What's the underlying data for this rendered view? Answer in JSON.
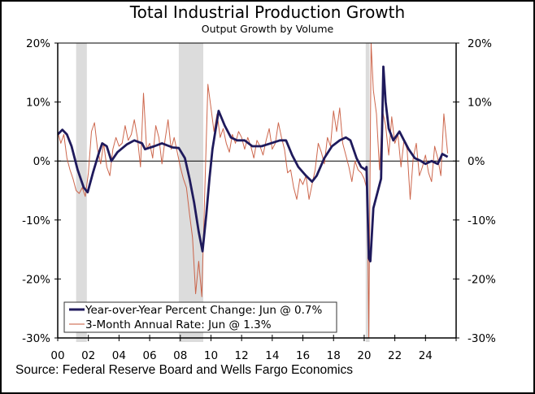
{
  "chart_data": {
    "type": "line",
    "title": "Total Industrial Production Growth",
    "subtitle": "Output Growth by Volume",
    "source": "Source: Federal Reserve Board and Wells Fargo Economics",
    "xlabel": "",
    "ylabel": "",
    "xlim": [
      2000,
      2026
    ],
    "ylim": [
      -30,
      20
    ],
    "x_ticks": [
      {
        "value": 2000,
        "label": "00"
      },
      {
        "value": 2002,
        "label": "02"
      },
      {
        "value": 2004,
        "label": "04"
      },
      {
        "value": 2006,
        "label": "06"
      },
      {
        "value": 2008,
        "label": "08"
      },
      {
        "value": 2010,
        "label": "10"
      },
      {
        "value": 2012,
        "label": "12"
      },
      {
        "value": 2014,
        "label": "14"
      },
      {
        "value": 2016,
        "label": "16"
      },
      {
        "value": 2018,
        "label": "18"
      },
      {
        "value": 2020,
        "label": "20"
      },
      {
        "value": 2022,
        "label": "22"
      },
      {
        "value": 2024,
        "label": "24"
      },
      {
        "value": 2026,
        "label": ""
      }
    ],
    "y_ticks": [
      {
        "value": 20,
        "label": "20%"
      },
      {
        "value": 10,
        "label": "10%"
      },
      {
        "value": 0,
        "label": "0%"
      },
      {
        "value": -10,
        "label": "-10%"
      },
      {
        "value": -20,
        "label": "-20%"
      },
      {
        "value": -30,
        "label": "-30%"
      }
    ],
    "recessions": [
      {
        "start": 2001.2,
        "end": 2001.9
      },
      {
        "start": 2007.9,
        "end": 2009.5
      },
      {
        "start": 2020.1,
        "end": 2020.35
      }
    ],
    "recession_color": "#dcdcdc",
    "legend_position": "bottom-left",
    "series": [
      {
        "name": "Year-over-Year Percent Change: Jun @ 0.7%",
        "color": "#1f1a5c",
        "width": "thick",
        "x": [
          2000.0,
          2000.3,
          2000.6,
          2000.9,
          2001.3,
          2001.7,
          2001.95,
          2002.3,
          2002.7,
          2002.9,
          2003.2,
          2003.5,
          2003.9,
          2004.5,
          2005.0,
          2005.5,
          2005.7,
          2006.3,
          2006.8,
          2007.5,
          2007.9,
          2008.3,
          2008.6,
          2008.9,
          2009.2,
          2009.45,
          2009.7,
          2009.9,
          2010.1,
          2010.5,
          2010.9,
          2011.3,
          2011.7,
          2012.2,
          2012.7,
          2013.3,
          2013.9,
          2014.5,
          2014.9,
          2015.3,
          2015.7,
          2016.2,
          2016.6,
          2016.9,
          2017.4,
          2017.9,
          2018.4,
          2018.8,
          2019.1,
          2019.5,
          2019.8,
          2020.1,
          2020.15,
          2020.3,
          2020.4,
          2020.6,
          2020.9,
          2021.1,
          2021.25,
          2021.4,
          2021.6,
          2021.9,
          2022.3,
          2022.6,
          2022.9,
          2023.3,
          2023.7,
          2024.0,
          2024.4,
          2024.8,
          2025.1,
          2025.45
        ],
        "values": [
          4.5,
          5.3,
          4.5,
          2.5,
          -1.5,
          -4.5,
          -5.3,
          -2.0,
          1.5,
          3.0,
          2.5,
          0.0,
          1.5,
          2.8,
          3.5,
          3.0,
          2.0,
          2.5,
          3.0,
          2.3,
          2.2,
          0.5,
          -3.0,
          -7.0,
          -12.0,
          -15.3,
          -9.0,
          -3.0,
          2.0,
          8.5,
          6.0,
          4.0,
          3.5,
          3.5,
          2.5,
          2.5,
          3.0,
          3.5,
          3.5,
          1.0,
          -1.0,
          -2.5,
          -3.5,
          -2.5,
          0.5,
          2.5,
          3.5,
          4.0,
          3.5,
          0.5,
          -1.0,
          -1.5,
          -1.0,
          -16.5,
          -17.0,
          -8.0,
          -5.0,
          -3.0,
          16.0,
          10.0,
          5.5,
          3.5,
          5.0,
          3.5,
          2.0,
          0.5,
          0.0,
          -0.5,
          0.0,
          -0.5,
          1.2,
          0.7
        ]
      },
      {
        "name": "3-Month Annual Rate: Jun @ 1.3%",
        "color": "#c8573a",
        "width": "thin",
        "x": [
          2000.0,
          2000.2,
          2000.4,
          2000.6,
          2000.8,
          2001.0,
          2001.2,
          2001.4,
          2001.6,
          2001.8,
          2002.0,
          2002.2,
          2002.4,
          2002.6,
          2002.8,
          2003.0,
          2003.2,
          2003.4,
          2003.6,
          2003.8,
          2004.0,
          2004.2,
          2004.4,
          2004.6,
          2004.8,
          2005.0,
          2005.2,
          2005.4,
          2005.6,
          2005.8,
          2006.0,
          2006.2,
          2006.4,
          2006.6,
          2006.8,
          2007.0,
          2007.2,
          2007.4,
          2007.6,
          2007.8,
          2008.0,
          2008.2,
          2008.4,
          2008.6,
          2008.8,
          2009.0,
          2009.2,
          2009.4,
          2009.6,
          2009.8,
          2010.0,
          2010.2,
          2010.4,
          2010.6,
          2010.8,
          2011.0,
          2011.2,
          2011.4,
          2011.6,
          2011.8,
          2012.0,
          2012.2,
          2012.4,
          2012.6,
          2012.8,
          2013.0,
          2013.2,
          2013.4,
          2013.6,
          2013.8,
          2014.0,
          2014.2,
          2014.4,
          2014.6,
          2014.8,
          2015.0,
          2015.2,
          2015.4,
          2015.6,
          2015.8,
          2016.0,
          2016.2,
          2016.4,
          2016.6,
          2016.8,
          2017.0,
          2017.2,
          2017.4,
          2017.6,
          2017.8,
          2018.0,
          2018.2,
          2018.4,
          2018.6,
          2018.8,
          2019.0,
          2019.2,
          2019.4,
          2019.6,
          2019.8,
          2020.0,
          2020.2,
          2020.3,
          2020.45,
          2020.6,
          2020.8,
          2021.0,
          2021.2,
          2021.4,
          2021.6,
          2021.8,
          2022.0,
          2022.2,
          2022.4,
          2022.6,
          2022.8,
          2023.0,
          2023.2,
          2023.4,
          2023.6,
          2023.8,
          2024.0,
          2024.2,
          2024.4,
          2024.6,
          2024.8,
          2025.0,
          2025.2,
          2025.45
        ],
        "values": [
          5.0,
          3.0,
          4.5,
          0.5,
          -1.5,
          -3.0,
          -5.0,
          -5.5,
          -4.5,
          -6.0,
          -2.0,
          5.0,
          6.5,
          2.0,
          -0.5,
          3.0,
          -1.0,
          -2.5,
          2.0,
          4.0,
          2.5,
          3.0,
          6.0,
          3.5,
          4.5,
          7.0,
          4.0,
          -1.0,
          11.5,
          2.0,
          3.0,
          0.5,
          6.0,
          4.0,
          -0.5,
          3.5,
          7.0,
          2.0,
          4.0,
          1.5,
          -1.0,
          -3.0,
          -4.5,
          -9.0,
          -13.0,
          -22.5,
          -17.0,
          -23.0,
          -5.0,
          13.0,
          9.0,
          5.0,
          8.0,
          4.0,
          5.5,
          3.0,
          1.5,
          4.5,
          3.0,
          5.0,
          4.0,
          2.0,
          4.0,
          2.5,
          0.5,
          3.5,
          2.5,
          1.0,
          3.5,
          5.5,
          2.0,
          3.0,
          6.5,
          4.0,
          2.0,
          -2.0,
          -1.5,
          -4.5,
          -6.5,
          -3.0,
          -4.0,
          -2.5,
          -6.5,
          -4.0,
          -1.5,
          3.0,
          1.5,
          -0.5,
          4.0,
          2.5,
          8.5,
          5.0,
          9.0,
          3.0,
          1.0,
          -1.0,
          -3.5,
          0.0,
          -1.5,
          -2.0,
          -3.0,
          -5.0,
          -30.0,
          40.0,
          12.0,
          8.0,
          -1.5,
          8.5,
          6.0,
          1.0,
          7.5,
          3.0,
          4.5,
          -1.0,
          3.5,
          2.0,
          -6.5,
          0.5,
          3.0,
          -2.5,
          -1.0,
          1.0,
          -2.0,
          -3.5,
          2.5,
          0.5,
          -2.5,
          8.0,
          1.3
        ]
      }
    ]
  }
}
